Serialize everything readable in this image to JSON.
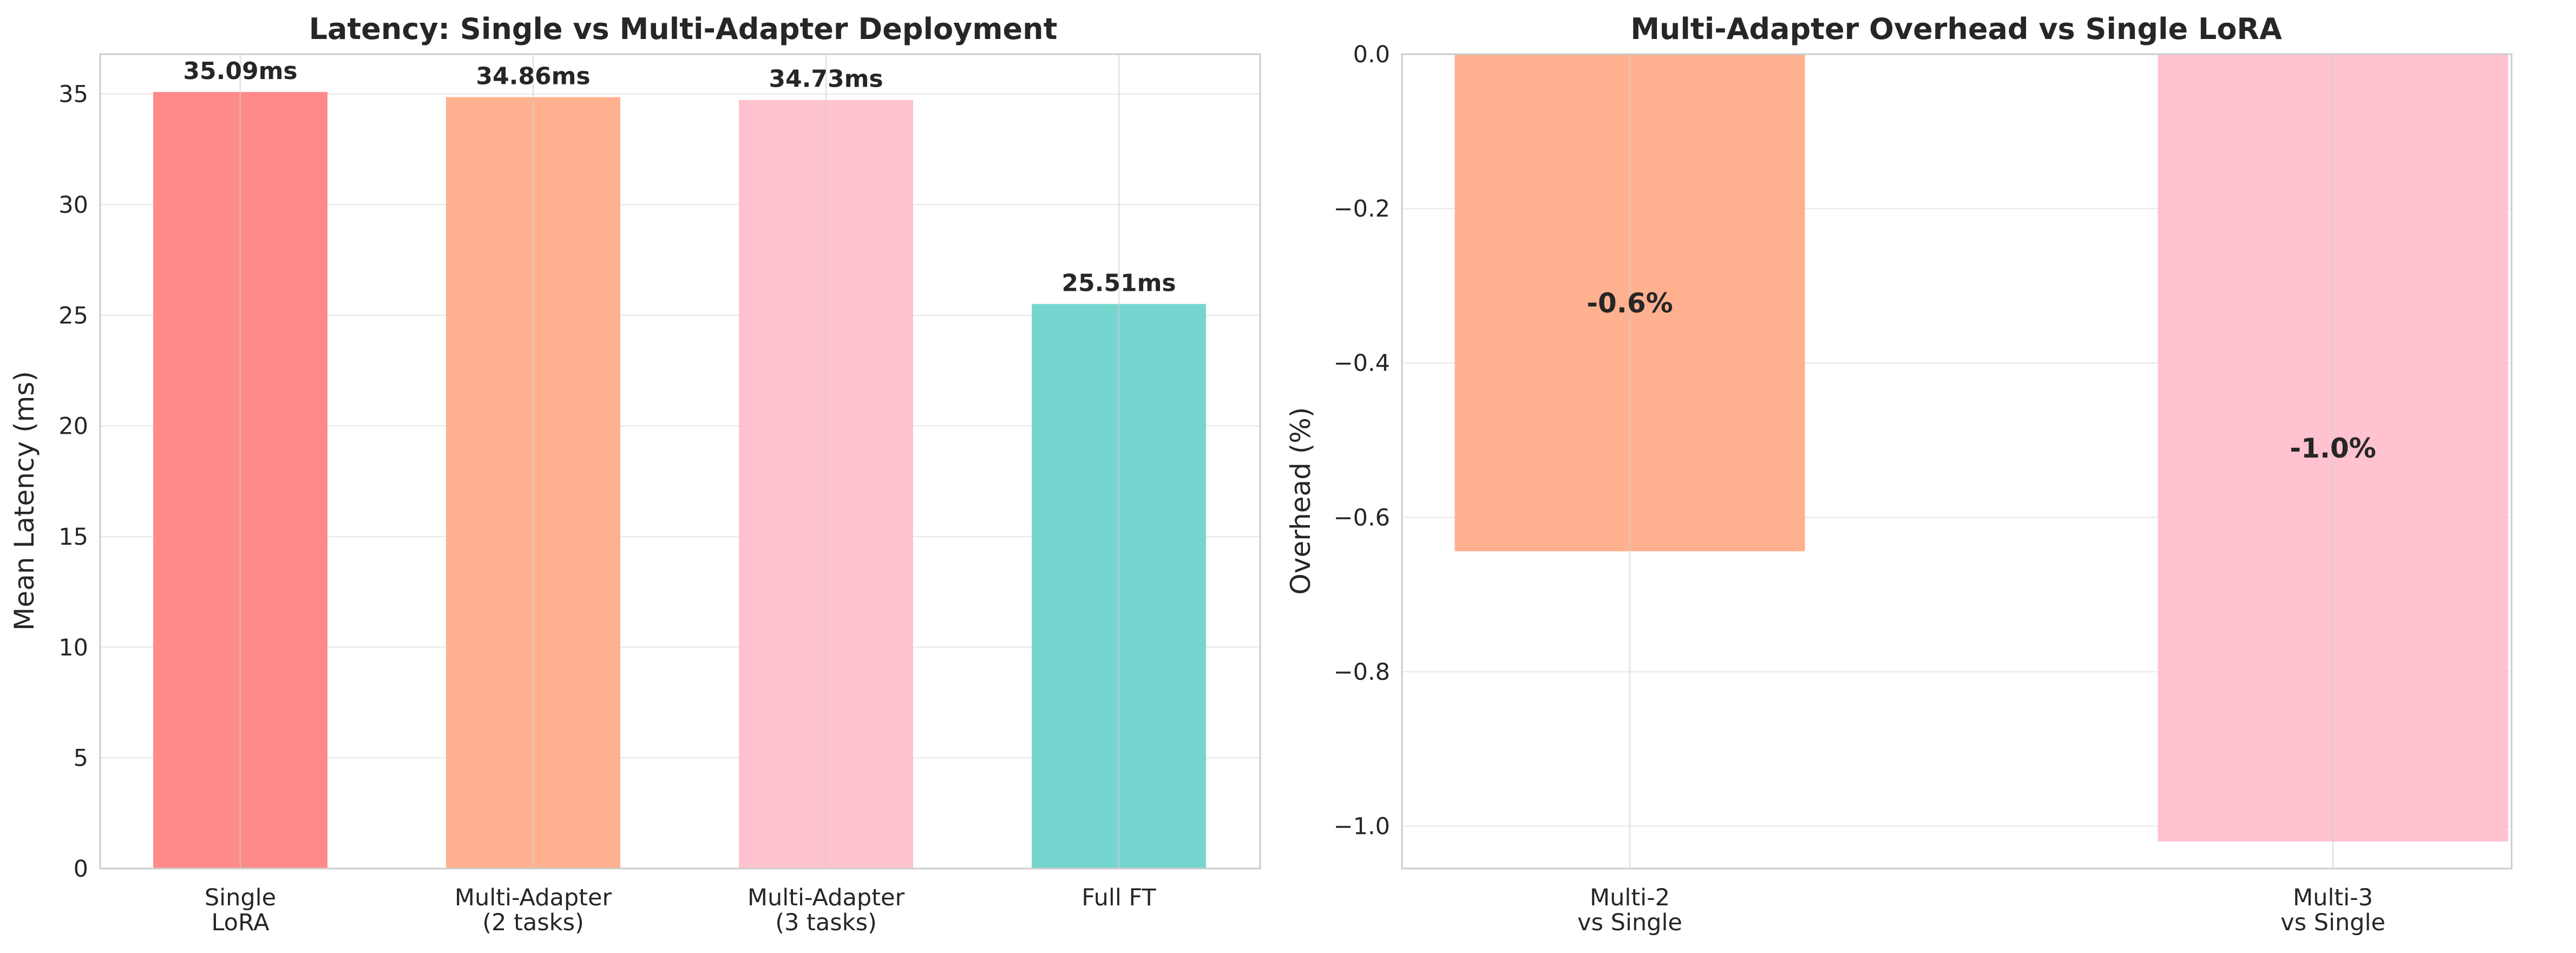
{
  "chart_data": [
    {
      "type": "bar",
      "title": "Latency: Single vs Multi-Adapter Deployment",
      "xlabel": "",
      "ylabel": "Mean Latency (ms)",
      "categories": [
        [
          "Single",
          "LoRA"
        ],
        [
          "Multi-Adapter",
          "(2 tasks)"
        ],
        [
          "Multi-Adapter",
          "(3 tasks)"
        ],
        [
          "Full FT"
        ]
      ],
      "values": [
        35.09,
        34.86,
        34.73,
        25.51
      ],
      "data_labels": [
        "35.09ms",
        "34.86ms",
        "34.73ms",
        "25.51ms"
      ],
      "colors": [
        "#ff8a8a",
        "#ffb08f",
        "#ffc2cf",
        "#75d6d0"
      ],
      "ylim": [
        0,
        36.8
      ],
      "yticks": [
        0,
        5,
        10,
        15,
        20,
        25,
        30,
        35
      ],
      "grid": true
    },
    {
      "type": "bar",
      "title": "Multi-Adapter Overhead vs Single LoRA",
      "xlabel": "",
      "ylabel": "Overhead (%)",
      "categories": [
        [
          "Multi-2",
          "vs Single"
        ],
        [
          "Multi-3",
          "vs Single"
        ]
      ],
      "values": [
        -0.644,
        -1.02
      ],
      "data_labels": [
        "-0.6%",
        "-1.0%"
      ],
      "colors": [
        "#ffb08f",
        "#ffc2cf"
      ],
      "ylim": [
        -1.055,
        0
      ],
      "yticks": [
        0.0,
        -0.2,
        -0.4,
        -0.6,
        -0.8,
        -1.0
      ],
      "ytick_labels": [
        "0.0",
        "−0.2",
        "−0.4",
        "−0.6",
        "−0.8",
        "−1.0"
      ],
      "reference_line": 0,
      "grid": true
    }
  ]
}
